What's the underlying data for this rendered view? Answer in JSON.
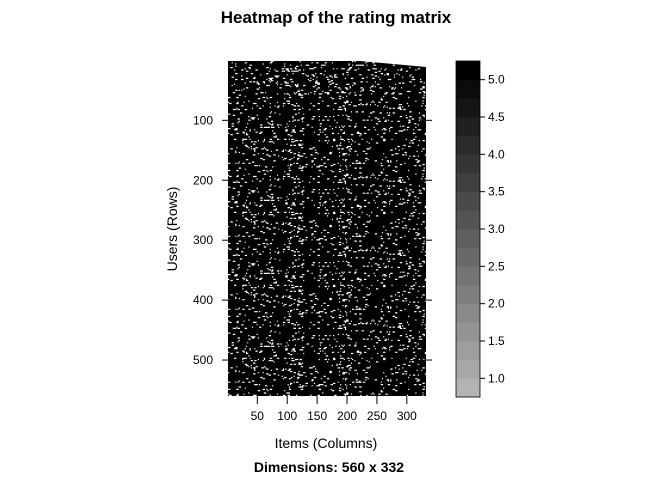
{
  "chart_data": {
    "type": "heatmap",
    "title": "Heatmap of the rating matrix",
    "xlabel": "Items (Columns)",
    "ylabel": "Users (Rows)",
    "subtitle": "Dimensions: 560 x 332",
    "rows": 560,
    "columns": 332,
    "xlim": [
      1,
      332
    ],
    "ylim": [
      1,
      560
    ],
    "x_ticks": [
      50,
      100,
      150,
      200,
      250,
      300
    ],
    "y_ticks": [
      100,
      200,
      300,
      400,
      500
    ],
    "y_reversed": true,
    "colorbar": {
      "range": [
        0.75,
        5.25
      ],
      "ticks": [
        1.0,
        1.5,
        2.0,
        2.5,
        3.0,
        3.5,
        4.0,
        4.5,
        5.0
      ],
      "tick_labels": [
        "1.0",
        "1.5",
        "2.0",
        "2.5",
        "3.0",
        "3.5",
        "4.0",
        "4.5",
        "5.0"
      ],
      "levels": 18,
      "color_low": "#b3b3b3",
      "color_high": "#000000"
    },
    "missing_color": "#ffffff",
    "fill_color": "#000000"
  }
}
